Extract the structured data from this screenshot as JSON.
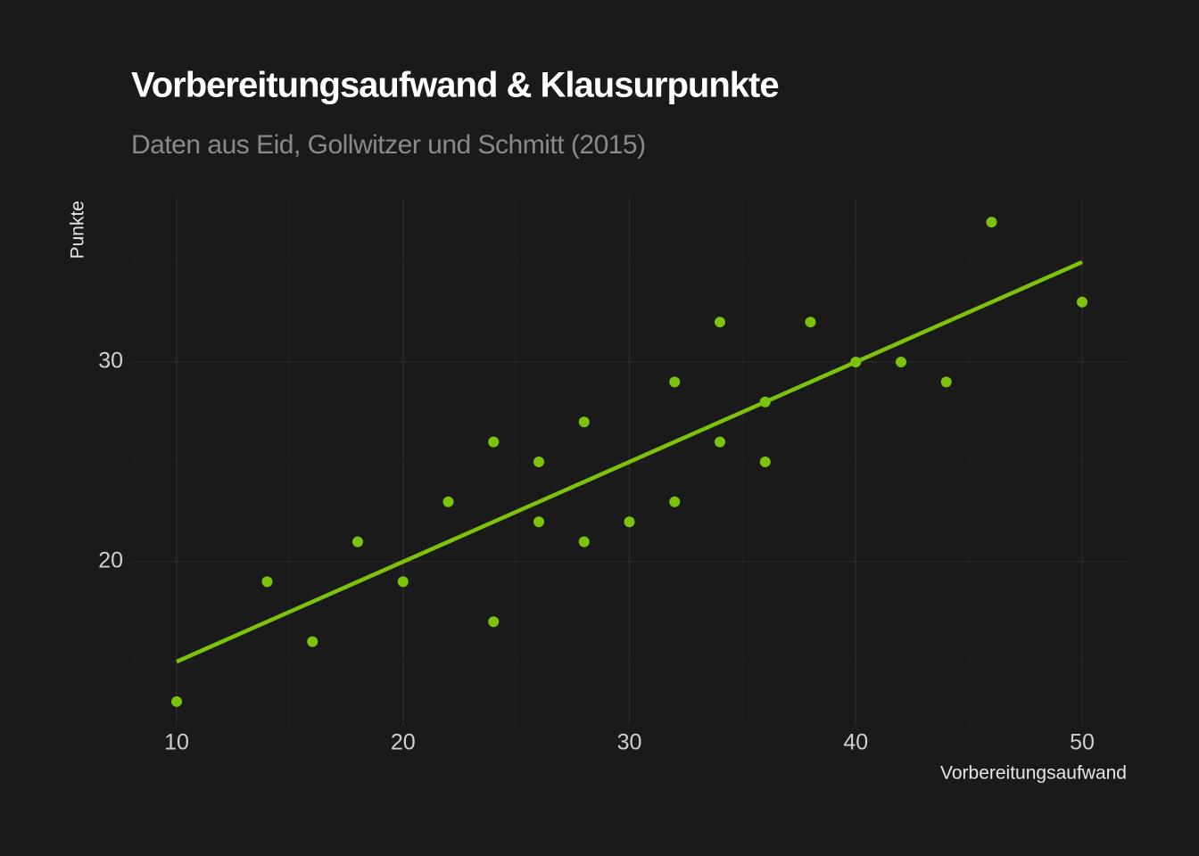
{
  "chart_data": {
    "type": "scatter",
    "title": "Vorbereitungsaufwand & Klausurpunkte",
    "subtitle": "Daten aus Eid, Gollwitzer und Schmitt (2015)",
    "x_label": "Vorbereitungsaufwand",
    "y_label": "Punkte",
    "color": "#7dc30a",
    "grid": true,
    "xlim": [
      8,
      52
    ],
    "ylim": [
      11.8,
      38.2
    ],
    "xticks": [
      10,
      20,
      30,
      40,
      50
    ],
    "yticks": [
      20,
      30
    ],
    "xminor": [
      15,
      25,
      35,
      45
    ],
    "yminor": [
      15,
      25,
      35
    ],
    "series": [
      {
        "x": [
          10,
          14,
          16,
          18,
          20,
          22,
          24,
          24,
          26,
          26,
          28,
          28,
          30,
          32,
          32,
          34,
          34,
          36,
          36,
          38,
          40,
          42,
          44,
          46,
          50
        ],
        "values": [
          13,
          19,
          16,
          21,
          19,
          23,
          26,
          17,
          25,
          22,
          27,
          21,
          22,
          29,
          23,
          32,
          26,
          28,
          25,
          32,
          30,
          30,
          29,
          37,
          33
        ]
      }
    ],
    "trend": {
      "x": [
        10,
        50
      ],
      "values": [
        15,
        35
      ]
    }
  }
}
